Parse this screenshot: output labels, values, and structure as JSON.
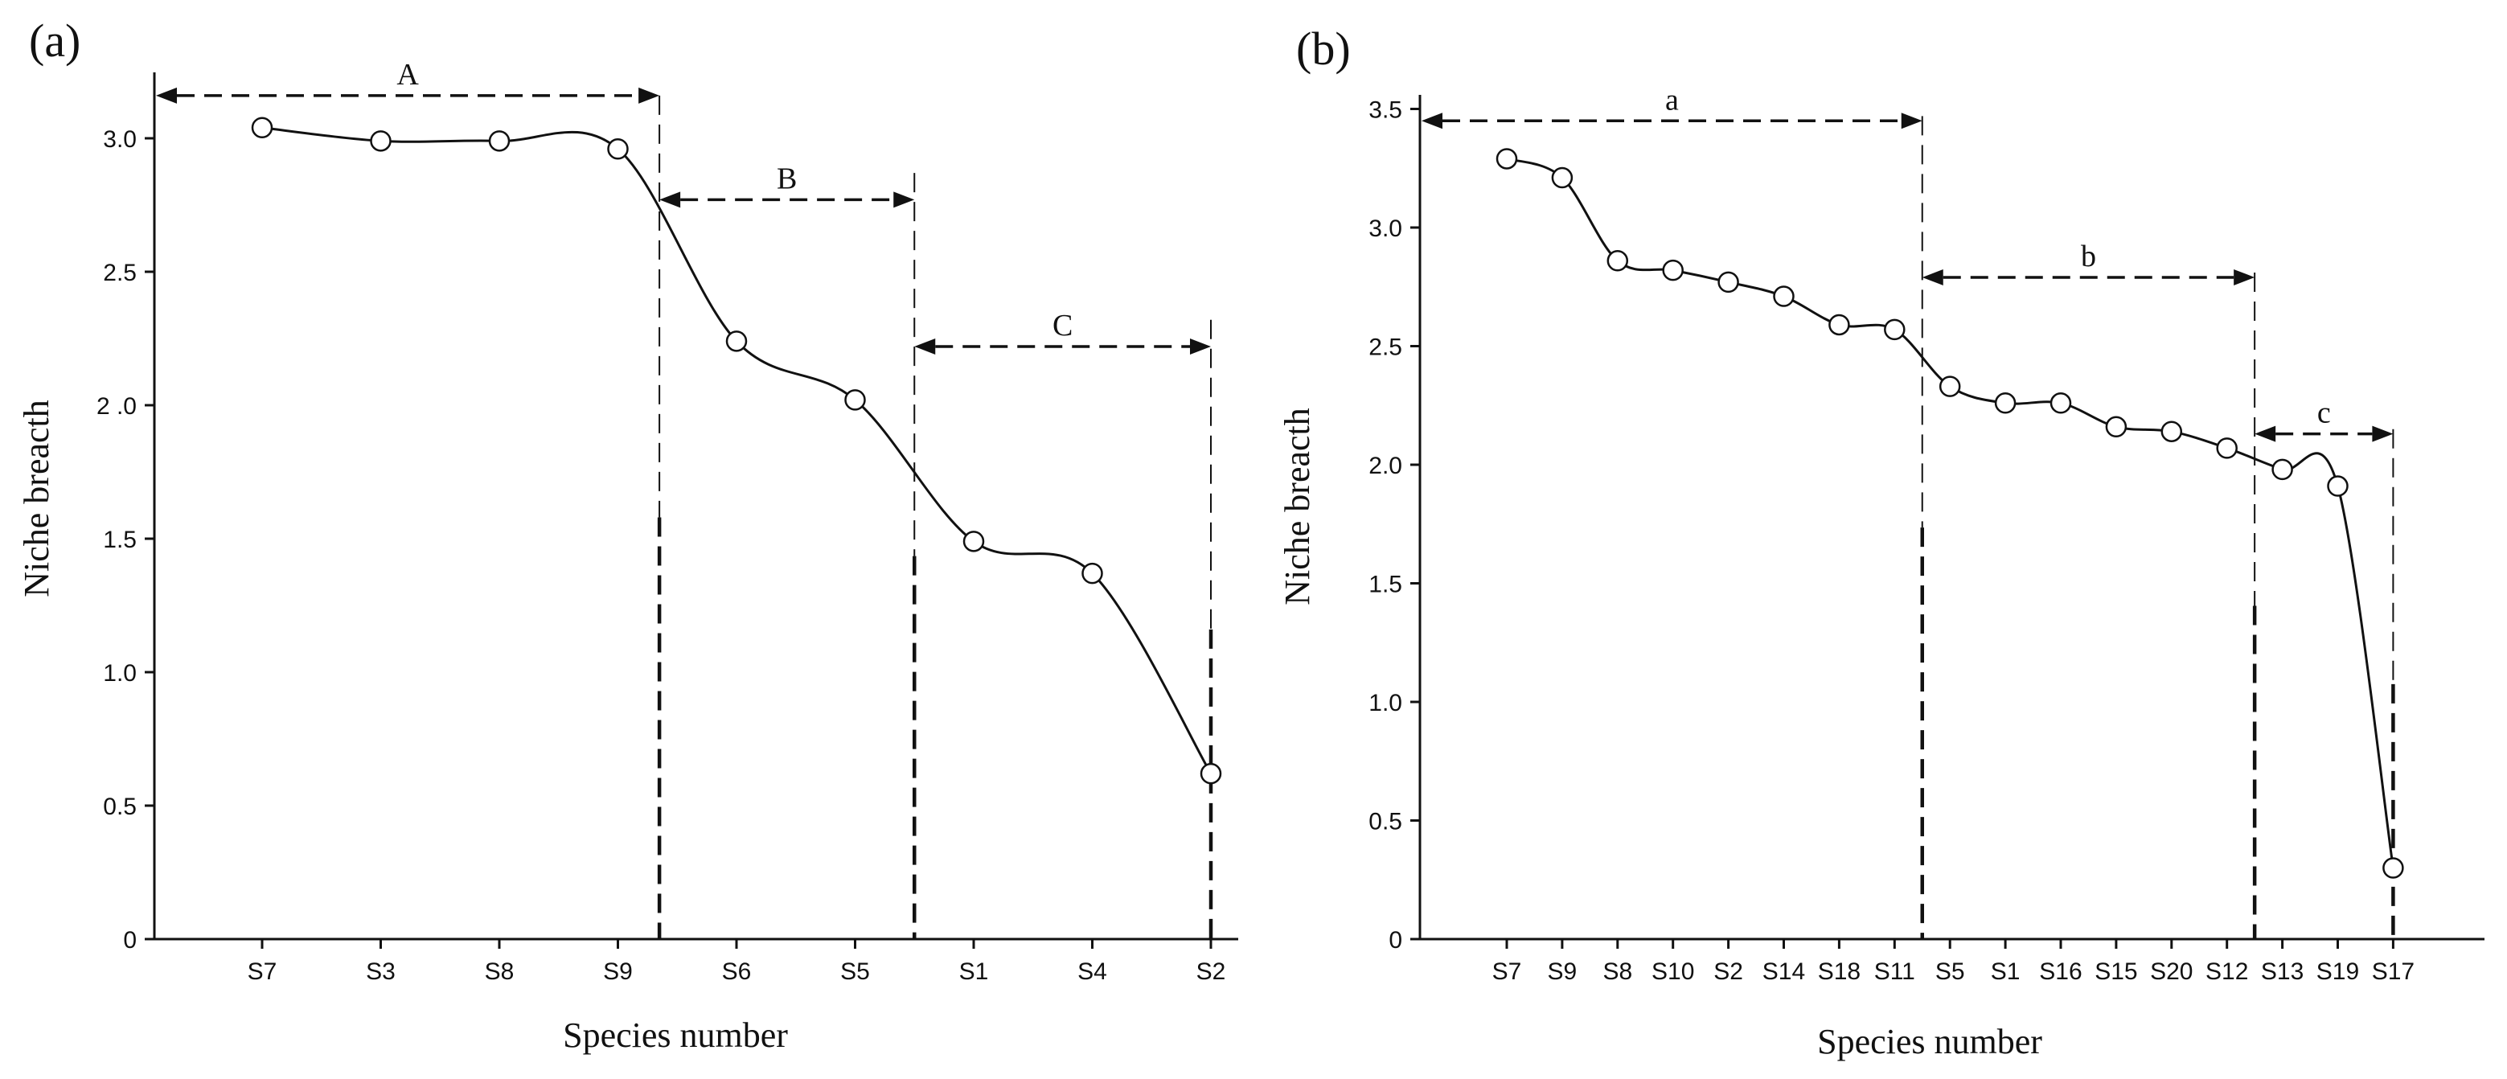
{
  "chart_data": [
    {
      "panel": "(a)",
      "type": "line",
      "xlabel": "Species number",
      "ylabel": "Niche breacth",
      "ylim": [
        0,
        3.3
      ],
      "yticks": [
        0,
        0.5,
        1.0,
        1.5,
        2.0,
        2.5,
        3.0
      ],
      "ytick_labels": [
        "0",
        "0.5",
        "1.0",
        "1.5",
        "2 .0",
        "2.5",
        "3.0"
      ],
      "categories": [
        "S7",
        "S3",
        "S8",
        "S9",
        "S6",
        "S5",
        "S1",
        "S4",
        "S2"
      ],
      "values": [
        3.04,
        2.99,
        2.99,
        2.96,
        2.24,
        2.02,
        1.49,
        1.37,
        0.62
      ],
      "groups": [
        {
          "label": "A",
          "from_index": -1.1,
          "to_index": 3.35,
          "level": 3.16,
          "divider_top": 3.16
        },
        {
          "label": "B",
          "from_index": 3.35,
          "to_index": 5.5,
          "level": 2.77,
          "divider_top": 2.87
        },
        {
          "label": "C",
          "from_index": 5.5,
          "to_index": 8.0,
          "level": 2.22,
          "divider_top": 2.32
        }
      ]
    },
    {
      "panel": "(b)",
      "type": "line",
      "xlabel": "Species number",
      "ylabel": "Niche breacth",
      "ylim": [
        0,
        3.5
      ],
      "yticks": [
        0,
        0.5,
        1.0,
        1.5,
        2.0,
        2.5,
        3.0,
        3.5
      ],
      "ytick_labels": [
        "0",
        "0.5",
        "1.0",
        "1.5",
        "2.0",
        "2.5",
        "3.0",
        "3.5"
      ],
      "categories": [
        "S7",
        "S9",
        "S8",
        "S10",
        "S2",
        "S14",
        "S18",
        "S11",
        "S5",
        "S1",
        "S16",
        "S15",
        "S20",
        "S12",
        "S13",
        "S19",
        "S17"
      ],
      "values": [
        3.29,
        3.21,
        2.86,
        2.82,
        2.77,
        2.71,
        2.59,
        2.57,
        2.33,
        2.26,
        2.26,
        2.16,
        2.14,
        2.07,
        1.98,
        1.91,
        0.3
      ],
      "groups": [
        {
          "label": "a",
          "from_index": -1.45,
          "to_index": 7.5,
          "level": 3.45,
          "divider_top": 3.47
        },
        {
          "label": "b",
          "from_index": 7.5,
          "to_index": 13.5,
          "level": 2.79,
          "divider_top": 2.81
        },
        {
          "label": "c",
          "from_index": 13.5,
          "to_index": 16.0,
          "level": 2.13,
          "divider_top": 2.15
        }
      ]
    }
  ]
}
